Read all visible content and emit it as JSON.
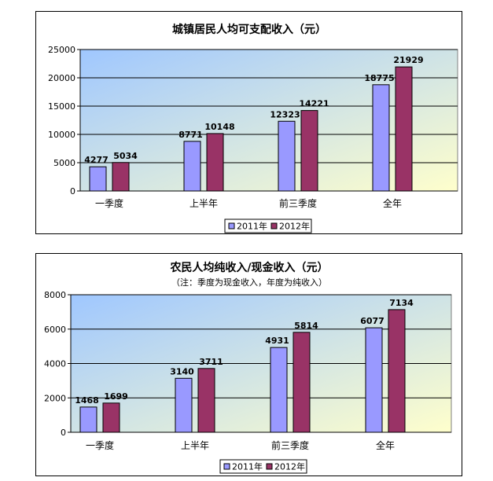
{
  "chart_data": [
    {
      "type": "bar",
      "title": "城镇居民人均可支配收入（元）",
      "subtitle": "",
      "categories": [
        "一季度",
        "上半年",
        "前三季度",
        "全年"
      ],
      "series": [
        {
          "name": "2011年",
          "values": [
            4277,
            8771,
            12323,
            18775
          ]
        },
        {
          "name": "2012年",
          "values": [
            5034,
            10148,
            14221,
            21929
          ]
        }
      ],
      "ylim": [
        0,
        25000
      ],
      "yticks": [
        "0",
        "5000",
        "10000",
        "15000",
        "20000",
        "25000"
      ],
      "grid": true,
      "legend": "bottom",
      "colors": {
        "s2011": "#9999ff",
        "s2012": "#993366",
        "plot_top": "#9fc7ff",
        "plot_bottom": "#ffffcc"
      }
    },
    {
      "type": "bar",
      "title": "农民人均纯收入/现金收入（元）",
      "subtitle": "（注：季度为现金收入，年度为纯收入）",
      "categories": [
        "一季度",
        "上半年",
        "前三季度",
        "全年"
      ],
      "series": [
        {
          "name": "2011年",
          "values": [
            1468,
            3140,
            4931,
            6077
          ]
        },
        {
          "name": "2012年",
          "values": [
            1699,
            3711,
            5814,
            7134
          ]
        }
      ],
      "ylim": [
        0,
        8000
      ],
      "yticks": [
        "0",
        "2000",
        "4000",
        "6000",
        "8000"
      ],
      "grid": true,
      "legend": "bottom",
      "colors": {
        "s2011": "#9999ff",
        "s2012": "#993366",
        "plot_top": "#9fc7ff",
        "plot_bottom": "#ffffcc"
      }
    }
  ]
}
